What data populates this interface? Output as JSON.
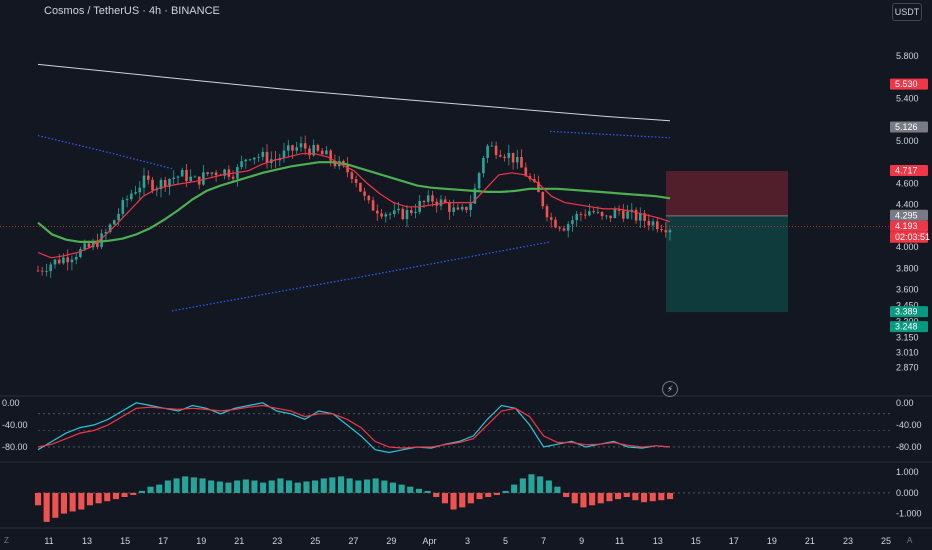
{
  "header": {
    "title": "Cosmos / TetherUS · 4h · BINANCE",
    "unit_label": "USDT",
    "bolt_icon": "lightning-icon",
    "left_corner": "Z",
    "right_corner": "A"
  },
  "colors": {
    "background": "#131722",
    "up_candle": "#26a69a",
    "down_candle": "#ef5350",
    "ema_fast": "#f23645",
    "ema_slow": "#4caf50",
    "ma_long": "#d1d4dc",
    "channel": "#2962ff",
    "stoch_k": "#26c6da",
    "stoch_d": "#f23645"
  },
  "chart_data": [
    {
      "type": "candlestick",
      "title": "Cosmos / TetherUS · 4h · BINANCE",
      "x_ticks": [
        "11",
        "13",
        "15",
        "17",
        "19",
        "21",
        "23",
        "25",
        "27",
        "29",
        "Apr",
        "3",
        "5",
        "7",
        "9",
        "11",
        "13",
        "15",
        "17",
        "19",
        "21",
        "23",
        "25"
      ],
      "ylim": [
        2.75,
        5.95
      ],
      "y_ticks": [
        "5.800",
        "5.400",
        "5.000",
        "4.600",
        "4.400",
        "4.000",
        "3.800",
        "3.600",
        "3.450",
        "3.300",
        "3.150",
        "3.010",
        "2.870"
      ],
      "price_labels": [
        {
          "text": "5.530",
          "value": 5.53,
          "color": "#f23645"
        },
        {
          "text": "5.126",
          "value": 5.126,
          "color": "#787b86"
        },
        {
          "text": "4.717",
          "value": 4.717,
          "color": "#f23645"
        },
        {
          "text": "4.295",
          "value": 4.295,
          "color": "#787b86"
        },
        {
          "text": "4.193",
          "value": 4.193,
          "color": "#f23645"
        },
        {
          "text": "02:03:51",
          "value": 4.193,
          "color": "#f23645"
        },
        {
          "text": "3.389",
          "value": 3.389,
          "color": "#089981"
        },
        {
          "text": "3.248",
          "value": 3.248,
          "color": "#089981"
        }
      ],
      "position": {
        "entry": 4.295,
        "stop": 4.717,
        "target": 3.389
      },
      "close_series": [
        3.78,
        3.85,
        3.9,
        3.95,
        4.0,
        4.1,
        4.3,
        4.5,
        4.62,
        4.58,
        4.65,
        4.68,
        4.62,
        4.7,
        4.72,
        4.7,
        4.88,
        4.85,
        4.82,
        4.9,
        4.95,
        4.9,
        4.85,
        4.75,
        4.68,
        4.4,
        4.35,
        4.3,
        4.32,
        4.4,
        4.45,
        4.4,
        4.3,
        4.45,
        4.95,
        4.92,
        4.85,
        4.7,
        4.5,
        4.25,
        4.2,
        4.3,
        4.35,
        4.25,
        4.35,
        4.3,
        4.26,
        4.22,
        4.19
      ],
      "ema_fast": [
        3.95,
        3.9,
        3.92,
        3.95,
        4.0,
        4.1,
        4.22,
        4.35,
        4.48,
        4.55,
        4.58,
        4.6,
        4.62,
        4.65,
        4.68,
        4.7,
        4.72,
        4.78,
        4.82,
        4.85,
        4.88,
        4.88,
        4.85,
        4.78,
        4.72,
        4.6,
        4.5,
        4.42,
        4.38,
        4.38,
        4.4,
        4.42,
        4.42,
        4.42,
        4.55,
        4.68,
        4.7,
        4.68,
        4.6,
        4.48,
        4.42,
        4.4,
        4.38,
        4.36,
        4.36,
        4.34,
        4.31,
        4.28,
        4.24
      ],
      "ema_slow": [
        4.23,
        4.12,
        4.07,
        4.05,
        4.05,
        4.06,
        4.08,
        4.12,
        4.18,
        4.26,
        4.35,
        4.45,
        4.53,
        4.58,
        4.62,
        4.66,
        4.7,
        4.73,
        4.76,
        4.78,
        4.8,
        4.8,
        4.78,
        4.74,
        4.7,
        4.66,
        4.62,
        4.58,
        4.56,
        4.55,
        4.54,
        4.53,
        4.52,
        4.52,
        4.53,
        4.55,
        4.55,
        4.55,
        4.54,
        4.53,
        4.52,
        4.51,
        4.5,
        4.49,
        4.48,
        4.46
      ],
      "ma_long": [
        5.72,
        5.66,
        5.6,
        5.54,
        5.48,
        5.43,
        5.38,
        5.33,
        5.28,
        5.23,
        5.19
      ],
      "channel_upper": [
        5.05,
        4.9,
        4.74
      ],
      "channel_upper_right": [
        5.09,
        5.03
      ],
      "channel_lower": [
        3.4,
        3.72,
        4.05
      ]
    },
    {
      "type": "line",
      "name": "stochastic",
      "ylim": [
        -100,
        5
      ],
      "y_ticks": [
        "0.00",
        "-40.00",
        "-80.00"
      ],
      "series": [
        {
          "values": [
            -85,
            -70,
            -55,
            -45,
            -40,
            -30,
            -15,
            0,
            -5,
            -10,
            -15,
            -5,
            -10,
            -20,
            -10,
            -5,
            0,
            -15,
            -20,
            -30,
            -15,
            -20,
            -40,
            -60,
            -85,
            -90,
            -85,
            -80,
            -82,
            -75,
            -70,
            -60,
            -30,
            -5,
            -10,
            -40,
            -80,
            -75,
            -70,
            -80,
            -75,
            -70,
            -80,
            -82,
            -78,
            -80
          ]
        },
        {
          "values": [
            -80,
            -75,
            -65,
            -55,
            -50,
            -40,
            -25,
            -10,
            -8,
            -10,
            -12,
            -10,
            -12,
            -15,
            -12,
            -8,
            -5,
            -10,
            -15,
            -25,
            -20,
            -20,
            -30,
            -45,
            -70,
            -80,
            -82,
            -80,
            -80,
            -76,
            -72,
            -65,
            -40,
            -15,
            -10,
            -25,
            -60,
            -72,
            -72,
            -76,
            -75,
            -72,
            -77,
            -80,
            -78,
            -80
          ]
        }
      ]
    },
    {
      "type": "bar",
      "name": "histogram",
      "ylim": [
        -1.5,
        1.3
      ],
      "y_ticks": [
        "1.000",
        "0.000",
        "-1.000"
      ],
      "values": [
        -0.6,
        -1.4,
        -1.2,
        -1.0,
        -0.9,
        -0.8,
        -0.6,
        -0.5,
        -0.4,
        -0.3,
        -0.2,
        -0.1,
        0.1,
        0.3,
        0.4,
        0.6,
        0.7,
        0.8,
        0.75,
        0.7,
        0.6,
        0.55,
        0.5,
        0.6,
        0.65,
        0.6,
        0.5,
        0.6,
        0.7,
        0.6,
        0.5,
        0.55,
        0.6,
        0.7,
        0.75,
        0.8,
        0.7,
        0.6,
        0.65,
        0.7,
        0.6,
        0.5,
        0.4,
        0.3,
        0.2,
        0.1,
        -0.2,
        -0.5,
        -0.8,
        -0.7,
        -0.5,
        -0.3,
        -0.2,
        -0.1,
        0.1,
        0.4,
        0.7,
        0.9,
        0.8,
        0.6,
        0.3,
        -0.2,
        -0.5,
        -0.7,
        -0.6,
        -0.5,
        -0.4,
        -0.3,
        -0.2,
        -0.35,
        -0.45,
        -0.4,
        -0.35,
        -0.3
      ]
    }
  ]
}
